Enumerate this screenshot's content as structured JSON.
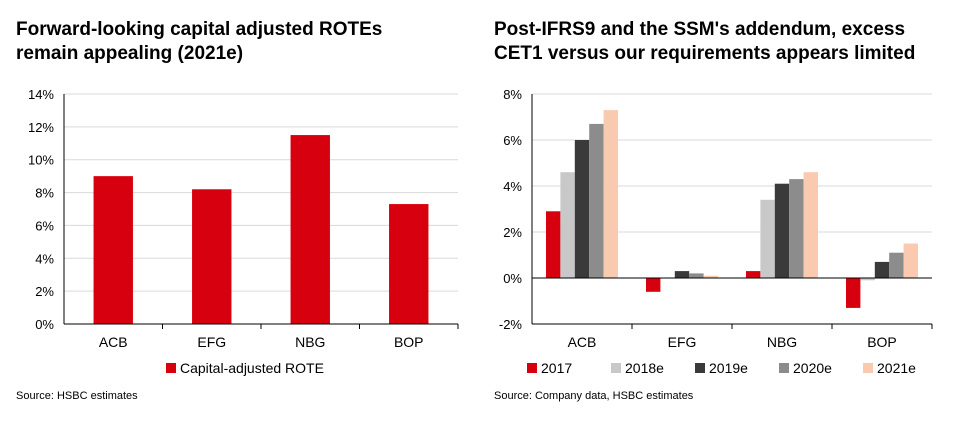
{
  "chart_data": [
    {
      "type": "bar",
      "title": "Forward-looking capital adjusted ROTEs remain appealing (2021e)",
      "title_line1": "Forward-looking capital adjusted ROTEs",
      "title_line2": "remain appealing (2021e)",
      "categories": [
        "ACB",
        "EFG",
        "NBG",
        "BOP"
      ],
      "series": [
        {
          "name": "Capital-adjusted ROTE",
          "values": [
            9.0,
            8.2,
            11.5,
            7.3
          ],
          "color": "#d7000f"
        }
      ],
      "ylim": [
        0,
        14
      ],
      "yticks": [
        0,
        2,
        4,
        6,
        8,
        10,
        12,
        14
      ],
      "ytick_labels": [
        "0%",
        "2%",
        "4%",
        "6%",
        "8%",
        "10%",
        "12%",
        "14%"
      ],
      "xlabel": "",
      "ylabel": "",
      "grid": true,
      "legend": "bottom",
      "source": "Source: HSBC estimates"
    },
    {
      "type": "bar",
      "title": "Post-IFRS9 and the SSM's addendum, excess CET1 versus our requirements appears limited",
      "title_line1": "Post-IFRS9 and the SSM's addendum, excess",
      "title_line2": "CET1 versus our requirements appears limited",
      "categories": [
        "ACB",
        "EFG",
        "NBG",
        "BOP"
      ],
      "series": [
        {
          "name": "2017",
          "values": [
            2.9,
            -0.6,
            0.3,
            -1.3
          ],
          "color": "#d7000f"
        },
        {
          "name": "2018e",
          "values": [
            4.6,
            0.0,
            3.4,
            -0.1
          ],
          "color": "#c8c8c8"
        },
        {
          "name": "2019e",
          "values": [
            6.0,
            0.3,
            4.1,
            0.7
          ],
          "color": "#3a3a3a"
        },
        {
          "name": "2020e",
          "values": [
            6.7,
            0.2,
            4.3,
            1.1
          ],
          "color": "#8c8c8c"
        },
        {
          "name": "2021e",
          "values": [
            7.3,
            0.1,
            4.6,
            1.5
          ],
          "color": "#f9c9b0"
        }
      ],
      "ylim": [
        -2,
        8
      ],
      "yticks": [
        -2,
        0,
        2,
        4,
        6,
        8
      ],
      "ytick_labels": [
        "-2%",
        "0%",
        "2%",
        "4%",
        "6%",
        "8%"
      ],
      "xlabel": "",
      "ylabel": "",
      "grid": true,
      "legend": "bottom",
      "source": "Source: Company data, HSBC estimates"
    }
  ]
}
